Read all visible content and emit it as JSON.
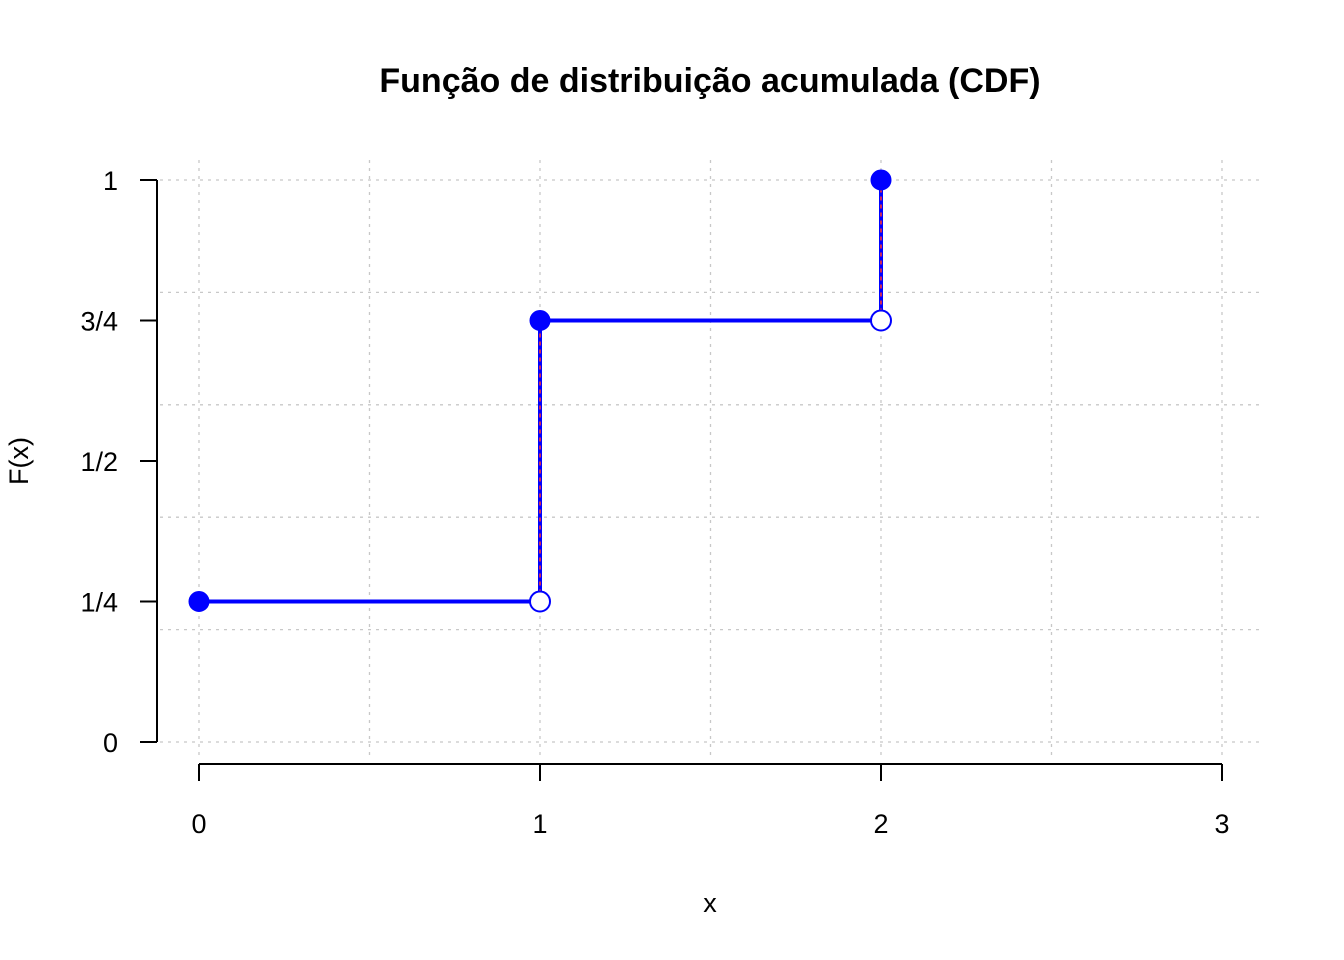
{
  "chart_data": {
    "type": "line",
    "title": "Função de distribuição acumulada (CDF)",
    "xlabel": "x",
    "ylabel": "F(x)",
    "xlim": [
      0,
      3
    ],
    "ylim": [
      0,
      1
    ],
    "grid": true,
    "x_ticks": [
      {
        "value": 0,
        "label": "0"
      },
      {
        "value": 1,
        "label": "1"
      },
      {
        "value": 2,
        "label": "2"
      },
      {
        "value": 3,
        "label": "3"
      }
    ],
    "y_ticks": [
      {
        "value": 0,
        "label": "0"
      },
      {
        "value": 0.25,
        "label": "1/4"
      },
      {
        "value": 0.5,
        "label": "1/2"
      },
      {
        "value": 0.75,
        "label": "3/4"
      },
      {
        "value": 1,
        "label": "1"
      }
    ],
    "steps": [
      {
        "x_start": 0,
        "x_end": 1,
        "y": 0.25
      },
      {
        "x_start": 1,
        "x_end": 2,
        "y": 0.75
      }
    ],
    "jumps": [
      {
        "x": 1,
        "y_from": 0.25,
        "y_to": 0.75
      },
      {
        "x": 2,
        "y_from": 0.75,
        "y_to": 1
      }
    ],
    "closed_points": [
      {
        "x": 0,
        "y": 0.25
      },
      {
        "x": 1,
        "y": 0.75
      },
      {
        "x": 2,
        "y": 1
      }
    ],
    "open_points": [
      {
        "x": 1,
        "y": 0.25
      },
      {
        "x": 2,
        "y": 0.75
      }
    ],
    "colors": {
      "series": "#0000ff",
      "jump_dash": "#ff3333",
      "grid": "#c8c8c8",
      "axis": "#000000"
    }
  }
}
